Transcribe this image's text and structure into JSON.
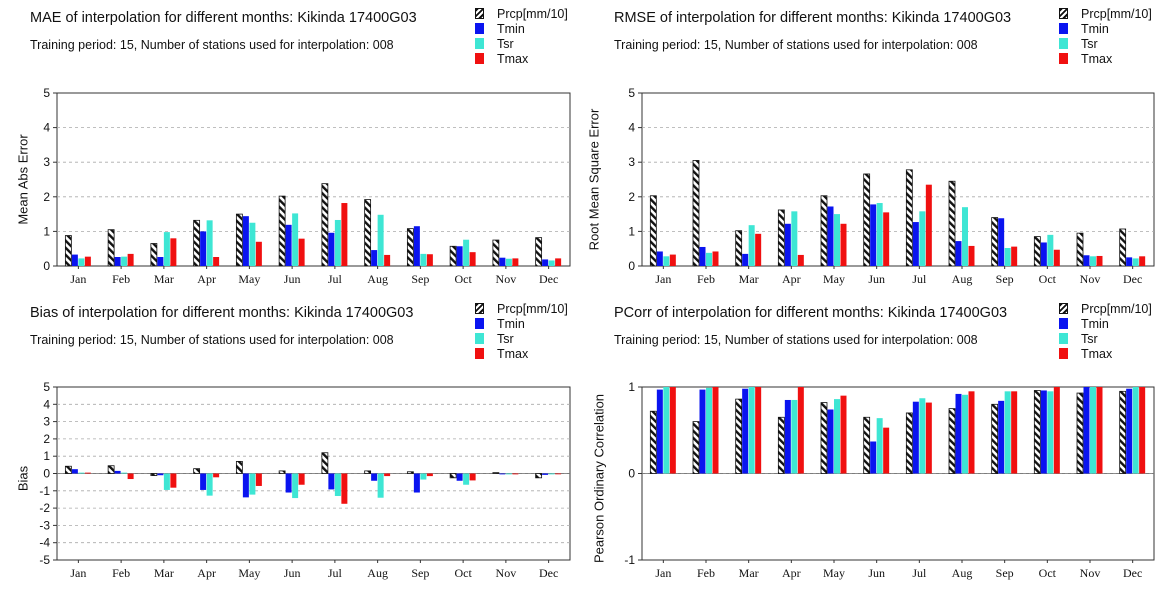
{
  "legend": [
    {
      "label": "Prcp[mm/10]",
      "color": "#111111",
      "pattern": "hatch"
    },
    {
      "label": "Tmin",
      "color": "#0a14f0"
    },
    {
      "label": "Tsr",
      "color": "#3ee6d4"
    },
    {
      "label": "Tmax",
      "color": "#f01010"
    }
  ],
  "chart_data": [
    {
      "type": "bar",
      "title": "MAE of interpolation for different months: Kikinda  17400G03",
      "subtitle": "Training period: 15, Number of stations used for interpolation: 008",
      "ylabel": "Mean Abs Error",
      "ylim": [
        0,
        5
      ],
      "yticks": [
        "0",
        "1",
        "2",
        "3",
        "4",
        "5"
      ],
      "categories": [
        "Jan",
        "Feb",
        "Mar",
        "Apr",
        "May",
        "Jun",
        "Jul",
        "Aug",
        "Sep",
        "Oct",
        "Nov",
        "Dec"
      ],
      "series": [
        {
          "name": "Prcp[mm/10]",
          "values": [
            0.88,
            1.05,
            0.65,
            1.32,
            1.5,
            2.02,
            2.38,
            1.92,
            1.08,
            0.57,
            0.75,
            0.82
          ]
        },
        {
          "name": "Tmin",
          "values": [
            0.33,
            0.26,
            0.26,
            1.0,
            1.44,
            1.19,
            0.96,
            0.46,
            1.15,
            0.57,
            0.24,
            0.19
          ]
        },
        {
          "name": "Tsr",
          "values": [
            0.22,
            0.27,
            0.98,
            1.32,
            1.25,
            1.52,
            1.33,
            1.48,
            0.35,
            0.76,
            0.21,
            0.16
          ]
        },
        {
          "name": "Tmax",
          "values": [
            0.27,
            0.35,
            0.8,
            0.26,
            0.7,
            0.79,
            1.82,
            0.32,
            0.34,
            0.4,
            0.22,
            0.22
          ]
        }
      ],
      "grid": true
    },
    {
      "type": "bar",
      "title": "RMSE of interpolation for different months: Kikinda  17400G03",
      "subtitle": "Training period: 15, Number of stations used for interpolation: 008",
      "ylabel": "Root Mean Square Error",
      "ylim": [
        0,
        5
      ],
      "yticks": [
        "0",
        "1",
        "2",
        "3",
        "4",
        "5"
      ],
      "categories": [
        "Jan",
        "Feb",
        "Mar",
        "Apr",
        "May",
        "Jun",
        "Jul",
        "Aug",
        "Sep",
        "Oct",
        "Nov",
        "Dec"
      ],
      "series": [
        {
          "name": "Prcp[mm/10]",
          "values": [
            2.03,
            3.05,
            1.02,
            1.62,
            2.03,
            2.66,
            2.78,
            2.45,
            1.4,
            0.85,
            0.95,
            1.07
          ]
        },
        {
          "name": "Tmin",
          "values": [
            0.42,
            0.55,
            0.35,
            1.22,
            1.72,
            1.78,
            1.27,
            0.72,
            1.38,
            0.68,
            0.31,
            0.25
          ]
        },
        {
          "name": "Tsr",
          "values": [
            0.28,
            0.38,
            1.18,
            1.58,
            1.5,
            1.82,
            1.58,
            1.7,
            0.52,
            0.9,
            0.28,
            0.22
          ]
        },
        {
          "name": "Tmax",
          "values": [
            0.33,
            0.42,
            0.93,
            0.32,
            1.22,
            1.55,
            2.35,
            0.58,
            0.56,
            0.47,
            0.29,
            0.28
          ]
        }
      ],
      "grid": true
    },
    {
      "type": "bar",
      "title": "Bias of interpolation for different months: Kikinda  17400G03",
      "subtitle": "Training period: 15, Number of stations used for interpolation: 008",
      "ylabel": "Bias",
      "ylim": [
        -5,
        5
      ],
      "yticks": [
        "-5",
        "-4",
        "-3",
        "-2",
        "-1",
        "0",
        "1",
        "2",
        "3",
        "4",
        "5"
      ],
      "categories": [
        "Jan",
        "Feb",
        "Mar",
        "Apr",
        "May",
        "Jun",
        "Jul",
        "Aug",
        "Sep",
        "Oct",
        "Nov",
        "Dec"
      ],
      "series": [
        {
          "name": "Prcp[mm/10]",
          "values": [
            0.42,
            0.45,
            -0.12,
            0.28,
            0.7,
            0.15,
            1.2,
            0.15,
            0.1,
            -0.25,
            0.05,
            -0.25
          ]
        },
        {
          "name": "Tmin",
          "values": [
            0.25,
            0.15,
            -0.1,
            -0.95,
            -1.38,
            -1.1,
            -0.92,
            -0.42,
            -1.1,
            -0.42,
            -0.05,
            -0.08
          ]
        },
        {
          "name": "Tsr",
          "values": [
            0.05,
            0.05,
            -0.95,
            -1.28,
            -1.22,
            -1.42,
            -1.3,
            -1.4,
            -0.35,
            -0.65,
            -0.05,
            -0.05
          ]
        },
        {
          "name": "Tmax",
          "values": [
            0.05,
            -0.32,
            -0.82,
            -0.22,
            -0.72,
            -0.65,
            -1.75,
            -0.15,
            -0.15,
            -0.4,
            -0.05,
            0.0
          ]
        }
      ],
      "grid": true
    },
    {
      "type": "bar",
      "title": "PCorr of interpolation for different months: Kikinda  17400G03",
      "subtitle": "Training period: 15, Number of stations used for interpolation: 008",
      "ylabel": "Pearson Ordinary Correlation",
      "ylim": [
        -1,
        1
      ],
      "yticks": [
        "-1",
        "0",
        "1"
      ],
      "categories": [
        "Jan",
        "Feb",
        "Mar",
        "Apr",
        "May",
        "Jun",
        "Jul",
        "Aug",
        "Sep",
        "Oct",
        "Nov",
        "Dec"
      ],
      "series": [
        {
          "name": "Prcp[mm/10]",
          "values": [
            0.72,
            0.6,
            0.86,
            0.65,
            0.82,
            0.65,
            0.7,
            0.75,
            0.8,
            0.96,
            0.93,
            0.95
          ]
        },
        {
          "name": "Tmin",
          "values": [
            0.97,
            0.97,
            0.98,
            0.85,
            0.74,
            0.37,
            0.83,
            0.92,
            0.84,
            0.96,
            1.0,
            0.98
          ]
        },
        {
          "name": "Tsr",
          "values": [
            1.0,
            0.99,
            1.0,
            0.85,
            0.86,
            0.64,
            0.87,
            0.91,
            0.95,
            0.95,
            1.0,
            1.0
          ]
        },
        {
          "name": "Tmax",
          "values": [
            1.0,
            1.0,
            1.0,
            1.0,
            0.9,
            0.53,
            0.82,
            0.95,
            0.95,
            1.0,
            1.0,
            1.0
          ]
        }
      ],
      "grid": true
    }
  ]
}
